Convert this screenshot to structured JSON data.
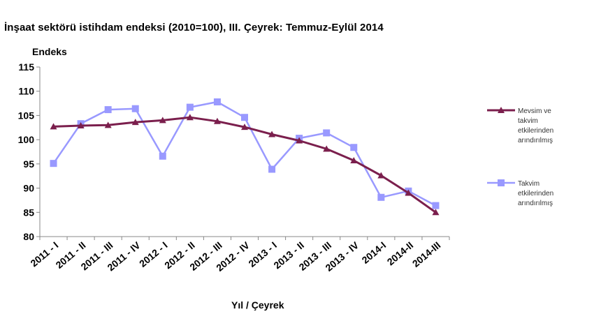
{
  "chart_data": {
    "type": "line",
    "title": "İnşaat sektörü istihdam endeksi (2010=100), III. Çeyrek: Temmuz-Eylül 2014",
    "ylabel": "Endeks",
    "xlabel": "Yıl / Çeyrek",
    "ylim": [
      80,
      115
    ],
    "yticks": [
      80,
      85,
      90,
      95,
      100,
      105,
      110,
      115
    ],
    "grid": false,
    "legend_position": "right",
    "categories": [
      "2011 - I",
      "2011 - II",
      "2011 - III",
      "2011 - IV",
      "2012 - I",
      "2012 - II",
      "2012 - III",
      "2012 - IV",
      "2013 - I",
      "2013 - II",
      "2013 - III",
      "2013 - IV",
      "2014-I",
      "2014-II",
      "2014-III"
    ],
    "series": [
      {
        "name": "Mevsim ve takvim etkilerinden arındırılmış",
        "color": "#7b1f4d",
        "marker": "triangle",
        "values": [
          102.7,
          102.9,
          103.0,
          103.6,
          104.0,
          104.6,
          103.8,
          102.6,
          101.1,
          99.8,
          98.1,
          95.7,
          92.6,
          89.0,
          85.0
        ]
      },
      {
        "name": "Takvim etkilerinden arındırılmış",
        "color": "#9999ff",
        "marker": "square",
        "values": [
          95.1,
          103.3,
          106.2,
          106.4,
          96.6,
          106.7,
          107.8,
          104.6,
          93.9,
          100.3,
          101.4,
          98.4,
          88.1,
          89.4,
          86.4
        ]
      }
    ],
    "legend_lines": [
      [
        "Mevsim ve",
        "takvim",
        "etkilerinden",
        "arındırılmış"
      ],
      [
        "Takvim",
        "etkilerinden",
        "arındırılmış"
      ]
    ]
  }
}
